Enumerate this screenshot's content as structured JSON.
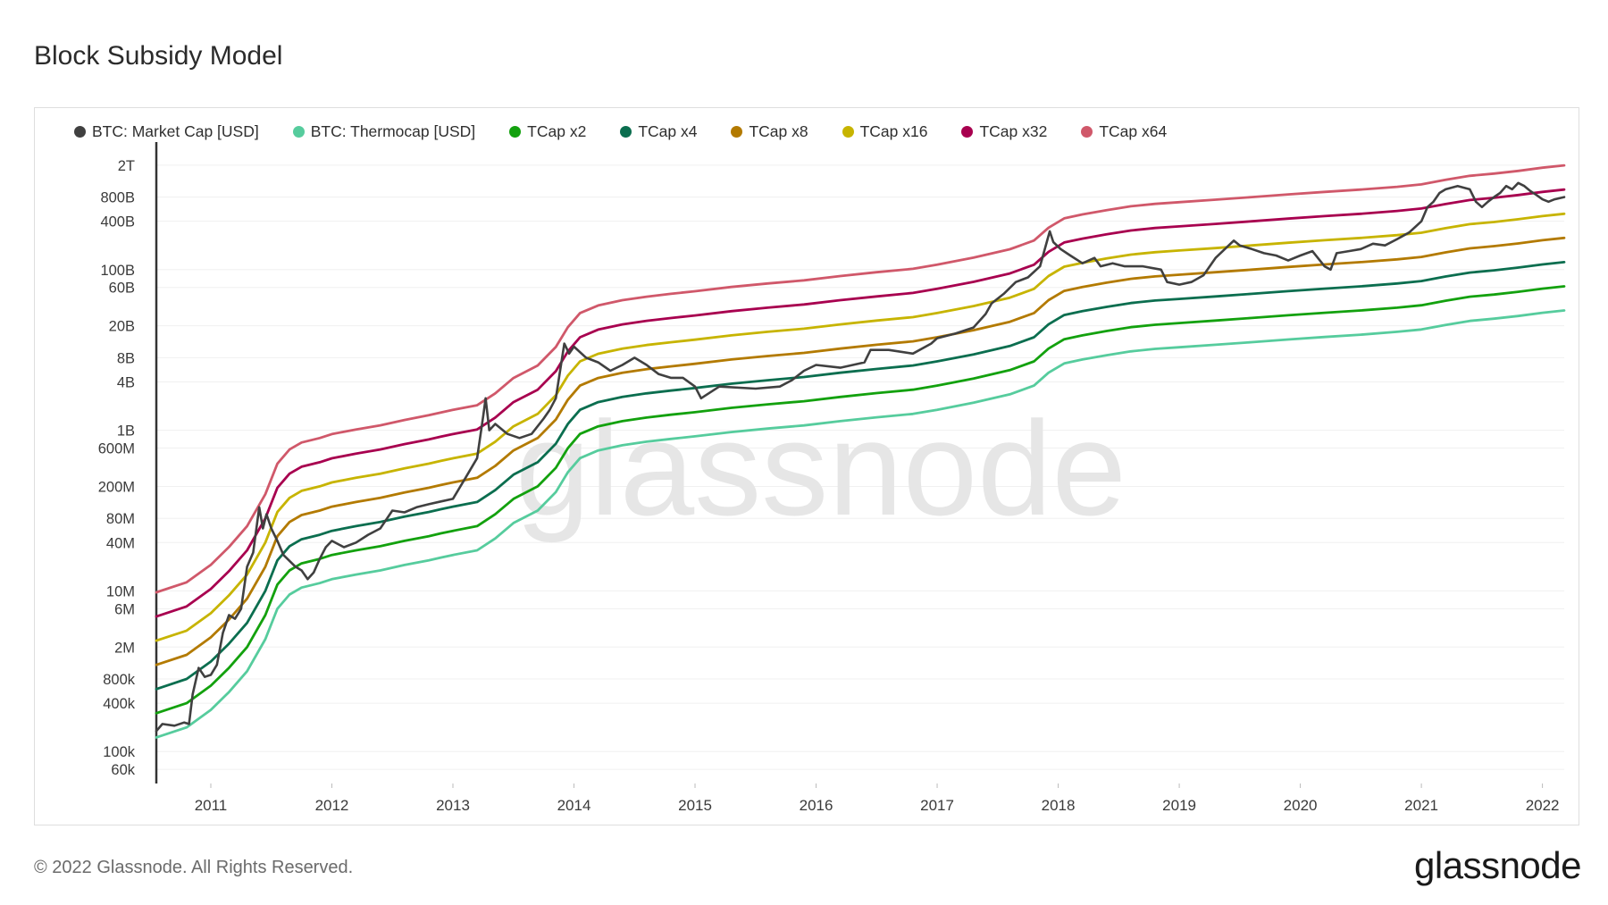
{
  "title": "Block Subsidy Model",
  "footer": {
    "copyright": "© 2022 Glassnode. All Rights Reserved.",
    "logo": "glassnode"
  },
  "watermark": "glassnode",
  "chart_data": {
    "type": "line",
    "scale": "log",
    "legend_placement": "top",
    "grid": true,
    "x_range": [
      2010.55,
      2022.18
    ],
    "y_range": [
      40000,
      3000000000000
    ],
    "x_ticks": [
      "2011",
      "2012",
      "2013",
      "2014",
      "2015",
      "2016",
      "2017",
      "2018",
      "2019",
      "2020",
      "2021",
      "2022"
    ],
    "y_ticks": [
      {
        "label": "2T",
        "value": 2000000000000
      },
      {
        "label": "800B",
        "value": 800000000000
      },
      {
        "label": "400B",
        "value": 400000000000
      },
      {
        "label": "100B",
        "value": 100000000000
      },
      {
        "label": "60B",
        "value": 60000000000
      },
      {
        "label": "20B",
        "value": 20000000000
      },
      {
        "label": "8B",
        "value": 8000000000
      },
      {
        "label": "4B",
        "value": 4000000000
      },
      {
        "label": "1B",
        "value": 1000000000
      },
      {
        "label": "600M",
        "value": 600000000
      },
      {
        "label": "200M",
        "value": 200000000
      },
      {
        "label": "80M",
        "value": 80000000
      },
      {
        "label": "40M",
        "value": 40000000
      },
      {
        "label": "10M",
        "value": 10000000
      },
      {
        "label": "6M",
        "value": 6000000
      },
      {
        "label": "2M",
        "value": 2000000
      },
      {
        "label": "800k",
        "value": 800000
      },
      {
        "label": "400k",
        "value": 400000
      },
      {
        "label": "100k",
        "value": 100000
      },
      {
        "label": "60k",
        "value": 60000
      }
    ],
    "thermocap": {
      "x": [
        2010.55,
        2010.8,
        2011.0,
        2011.15,
        2011.3,
        2011.45,
        2011.55,
        2011.65,
        2011.75,
        2011.9,
        2012.0,
        2012.2,
        2012.4,
        2012.6,
        2012.8,
        2012.9,
        2013.0,
        2013.2,
        2013.35,
        2013.5,
        2013.7,
        2013.85,
        2013.95,
        2014.05,
        2014.2,
        2014.4,
        2014.6,
        2014.8,
        2015.0,
        2015.3,
        2015.6,
        2015.9,
        2016.2,
        2016.5,
        2016.8,
        2017.0,
        2017.3,
        2017.6,
        2017.8,
        2017.92,
        2018.05,
        2018.2,
        2018.4,
        2018.6,
        2018.8,
        2019.0,
        2019.3,
        2019.6,
        2019.9,
        2020.2,
        2020.5,
        2020.8,
        2021.0,
        2021.2,
        2021.4,
        2021.6,
        2021.8,
        2022.0,
        2022.18
      ],
      "values": [
        150000,
        200000,
        330000,
        550000,
        1000000,
        2500000,
        6000000,
        9000000,
        11000000,
        12500000,
        14000000,
        16000000,
        18000000,
        21000000,
        24000000,
        26000000,
        28000000,
        32000000,
        45000000,
        70000000,
        100000000,
        170000000,
        300000000,
        450000000,
        560000000,
        650000000,
        720000000,
        780000000,
        840000000,
        950000000,
        1050000000,
        1150000000,
        1300000000,
        1450000000,
        1600000000,
        1800000000,
        2200000000,
        2800000000,
        3600000000,
        5200000000,
        6800000000,
        7600000000,
        8600000000,
        9600000000,
        10300000000,
        10800000000,
        11600000000,
        12500000000,
        13500000000,
        14500000000,
        15500000000,
        16800000000,
        18000000000,
        20500000000,
        23000000000,
        24500000000,
        26500000000,
        29000000000,
        31000000000
      ]
    },
    "market_cap": {
      "x": [
        2010.55,
        2010.6,
        2010.7,
        2010.78,
        2010.82,
        2010.85,
        2010.9,
        2010.95,
        2011.0,
        2011.05,
        2011.1,
        2011.15,
        2011.2,
        2011.25,
        2011.3,
        2011.35,
        2011.4,
        2011.43,
        2011.46,
        2011.5,
        2011.55,
        2011.6,
        2011.7,
        2011.75,
        2011.8,
        2011.85,
        2011.9,
        2011.95,
        2012.0,
        2012.1,
        2012.2,
        2012.3,
        2012.4,
        2012.5,
        2012.6,
        2012.7,
        2012.8,
        2012.9,
        2013.0,
        2013.1,
        2013.2,
        2013.25,
        2013.27,
        2013.3,
        2013.35,
        2013.45,
        2013.55,
        2013.65,
        2013.75,
        2013.8,
        2013.85,
        2013.92,
        2013.96,
        2014.0,
        2014.1,
        2014.2,
        2014.3,
        2014.4,
        2014.5,
        2014.6,
        2014.7,
        2014.8,
        2014.9,
        2015.0,
        2015.05,
        2015.2,
        2015.5,
        2015.7,
        2015.8,
        2015.9,
        2016.0,
        2016.2,
        2016.4,
        2016.45,
        2016.6,
        2016.8,
        2016.95,
        2017.0,
        2017.15,
        2017.3,
        2017.4,
        2017.45,
        2017.55,
        2017.65,
        2017.75,
        2017.85,
        2017.93,
        2017.96,
        2018.02,
        2018.1,
        2018.2,
        2018.3,
        2018.35,
        2018.45,
        2018.55,
        2018.7,
        2018.85,
        2018.9,
        2019.0,
        2019.1,
        2019.2,
        2019.3,
        2019.45,
        2019.5,
        2019.6,
        2019.7,
        2019.8,
        2019.9,
        2020.0,
        2020.1,
        2020.2,
        2020.25,
        2020.3,
        2020.4,
        2020.5,
        2020.6,
        2020.7,
        2020.8,
        2020.9,
        2021.0,
        2021.05,
        2021.1,
        2021.15,
        2021.2,
        2021.3,
        2021.4,
        2021.45,
        2021.5,
        2021.55,
        2021.6,
        2021.65,
        2021.7,
        2021.75,
        2021.8,
        2021.85,
        2021.9,
        2021.95,
        2022.0,
        2022.05,
        2022.1,
        2022.18
      ],
      "values": [
        180000,
        220000,
        210000,
        230000,
        220000,
        520000,
        1100000,
        850000,
        900000,
        1200000,
        3000000,
        5000000,
        4500000,
        6000000,
        20000000,
        30000000,
        110000000,
        60000000,
        90000000,
        60000000,
        42000000,
        28000000,
        20000000,
        18000000,
        14000000,
        17000000,
        25000000,
        35000000,
        42000000,
        35000000,
        40000000,
        50000000,
        60000000,
        100000000,
        95000000,
        110000000,
        120000000,
        130000000,
        140000000,
        250000000,
        450000000,
        1500000000,
        2500000000,
        1000000000,
        1200000000,
        900000000,
        800000000,
        900000000,
        1400000000,
        1800000000,
        2500000000,
        12000000000,
        9000000000,
        11000000000,
        8000000000,
        7000000000,
        5500000000,
        6500000000,
        8000000000,
        6500000000,
        5000000000,
        4500000000,
        4500000000,
        3500000000,
        2500000000,
        3500000000,
        3300000000,
        3500000000,
        4200000000,
        5500000000,
        6500000000,
        6000000000,
        7000000000,
        10000000000,
        10000000000,
        9000000000,
        12000000000,
        14000000000,
        16000000000,
        19000000000,
        28000000000,
        38000000000,
        50000000000,
        70000000000,
        80000000000,
        110000000000,
        300000000000,
        220000000000,
        180000000000,
        150000000000,
        120000000000,
        140000000000,
        110000000000,
        120000000000,
        110000000000,
        110000000000,
        100000000000,
        70000000000,
        65000000000,
        70000000000,
        85000000000,
        140000000000,
        230000000000,
        200000000000,
        180000000000,
        160000000000,
        150000000000,
        130000000000,
        150000000000,
        170000000000,
        110000000000,
        100000000000,
        160000000000,
        170000000000,
        180000000000,
        210000000000,
        200000000000,
        240000000000,
        290000000000,
        400000000000,
        600000000000,
        700000000000,
        900000000000,
        1000000000000,
        1100000000000,
        1000000000000,
        700000000000,
        600000000000,
        700000000000,
        800000000000,
        900000000000,
        1100000000000,
        1000000000000,
        1200000000000,
        1100000000000,
        950000000000,
        850000000000,
        750000000000,
        700000000000,
        750000000000,
        800000000000
      ]
    },
    "series": [
      {
        "name": "BTC: Market Cap [USD]",
        "key": "market_cap",
        "color": "#404040"
      },
      {
        "name": "BTC: Thermocap [USD]",
        "key": "thermocap",
        "multiplier": 1,
        "color": "#56cc9d"
      },
      {
        "name": "TCap x2",
        "key": "thermocap",
        "multiplier": 2,
        "color": "#13a10e"
      },
      {
        "name": "TCap x4",
        "key": "thermocap",
        "multiplier": 4,
        "color": "#0b6e4f"
      },
      {
        "name": "TCap x8",
        "key": "thermocap",
        "multiplier": 8,
        "color": "#b37a00"
      },
      {
        "name": "TCap x16",
        "key": "thermocap",
        "multiplier": 16,
        "color": "#c7b400"
      },
      {
        "name": "TCap x32",
        "key": "thermocap",
        "multiplier": 32,
        "color": "#a8004f"
      },
      {
        "name": "TCap x64",
        "key": "thermocap",
        "multiplier": 64,
        "color": "#d0586a"
      }
    ]
  }
}
